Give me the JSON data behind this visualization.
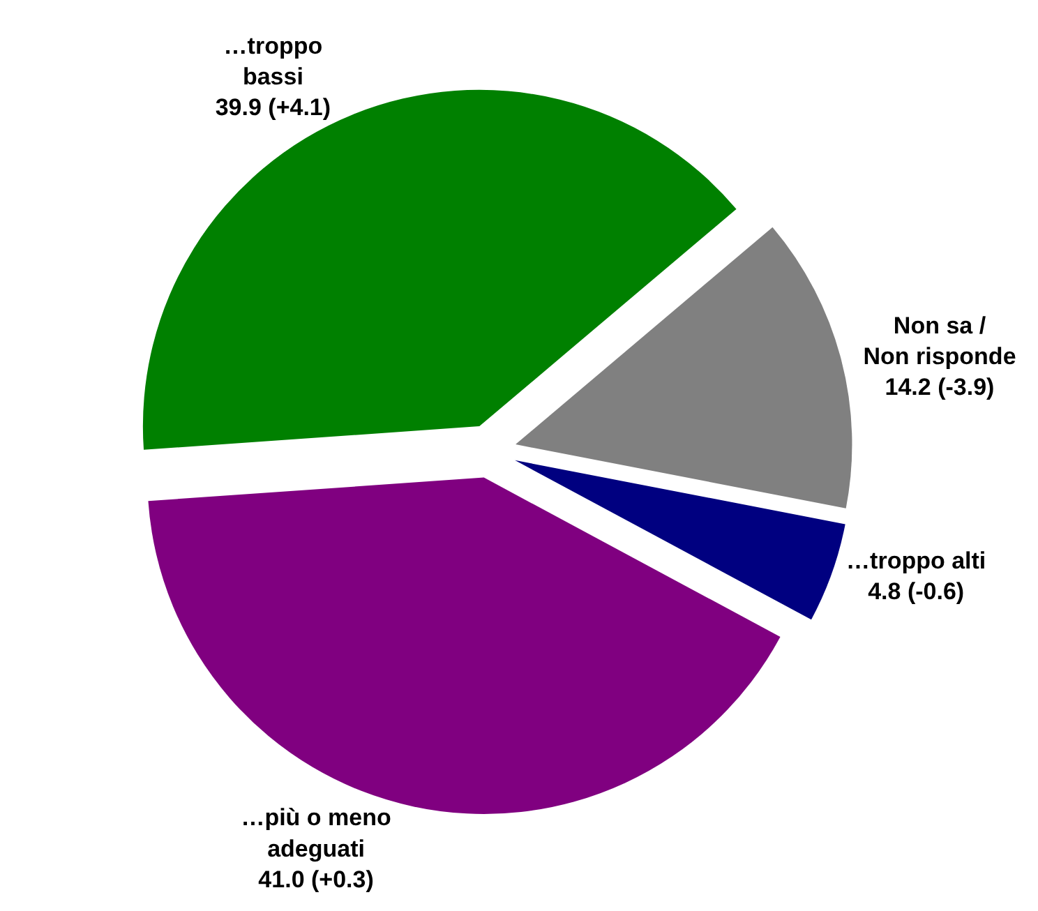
{
  "chart_data": {
    "type": "pie",
    "categories": [
      "…troppo\nbassi",
      "Non sa /\nNon risponde",
      "…troppo alti",
      "…più o meno\nadeguati"
    ],
    "values": [
      39.9,
      14.2,
      4.8,
      41.0
    ],
    "value_labels": [
      "39.9 (+4.1)",
      "14.2 (-3.9)",
      "4.8 (-0.6)",
      "41.0 (+0.3)"
    ],
    "colors": [
      "#008000",
      "#808080",
      "#000080",
      "#800080"
    ],
    "legend": false
  }
}
